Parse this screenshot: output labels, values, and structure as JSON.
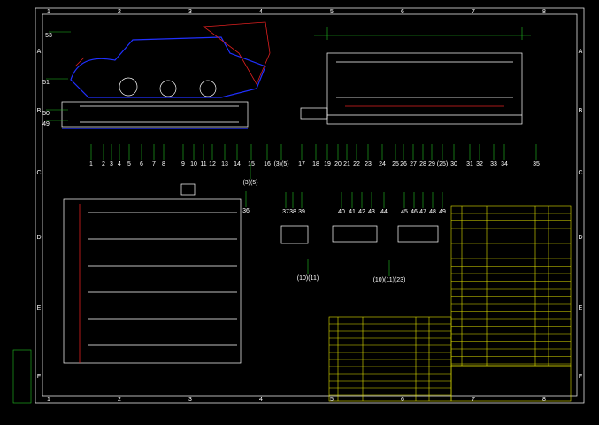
{
  "frame": {
    "columns": [
      "1",
      "2",
      "3",
      "4",
      "5",
      "6",
      "7",
      "8"
    ],
    "rows": [
      "A",
      "B",
      "C",
      "D",
      "E",
      "F"
    ]
  },
  "callouts": [
    {
      "label": "53"
    },
    {
      "label": "51"
    },
    {
      "label": "50"
    },
    {
      "label": "49"
    },
    {
      "label": "1"
    },
    {
      "label": "2"
    },
    {
      "label": "3"
    },
    {
      "label": "4"
    },
    {
      "label": "5"
    },
    {
      "label": "6"
    },
    {
      "label": "7"
    },
    {
      "label": "8"
    },
    {
      "label": "9"
    },
    {
      "label": "10"
    },
    {
      "label": "11"
    },
    {
      "label": "12"
    },
    {
      "label": "13"
    },
    {
      "label": "14"
    },
    {
      "label": "15"
    },
    {
      "label": "16"
    },
    {
      "label": "(3)(5)"
    },
    {
      "label": "17"
    },
    {
      "label": "18"
    },
    {
      "label": "19"
    },
    {
      "label": "20"
    },
    {
      "label": "21"
    },
    {
      "label": "22"
    },
    {
      "label": "23"
    },
    {
      "label": "24"
    },
    {
      "label": "25"
    },
    {
      "label": "26"
    },
    {
      "label": "27"
    },
    {
      "label": "28"
    },
    {
      "label": "29"
    },
    {
      "label": "(25)"
    },
    {
      "label": "30"
    },
    {
      "label": "31"
    },
    {
      "label": "32"
    },
    {
      "label": "33"
    },
    {
      "label": "34"
    },
    {
      "label": "35"
    },
    {
      "label": "(3)(5)"
    },
    {
      "label": "36"
    },
    {
      "label": "37"
    },
    {
      "label": "38"
    },
    {
      "label": "39"
    },
    {
      "label": "40"
    },
    {
      "label": "41"
    },
    {
      "label": "42"
    },
    {
      "label": "43"
    },
    {
      "label": "44"
    },
    {
      "label": "45"
    },
    {
      "label": "46"
    },
    {
      "label": "47"
    },
    {
      "label": "48"
    },
    {
      "label": "49"
    },
    {
      "label": "(10)(11)"
    },
    {
      "label": "(10)(11)(23)"
    }
  ]
}
